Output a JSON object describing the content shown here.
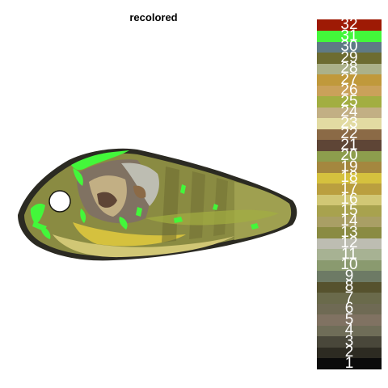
{
  "title": "recolored",
  "palette": [
    {
      "label": "1",
      "color": "#0b0b0b"
    },
    {
      "label": "2",
      "color": "#2d2b22"
    },
    {
      "label": "3",
      "color": "#49473a"
    },
    {
      "label": "4",
      "color": "#6f6d58"
    },
    {
      "label": "5",
      "color": "#807262"
    },
    {
      "label": "6",
      "color": "#6f6a54"
    },
    {
      "label": "7",
      "color": "#6a6a4b"
    },
    {
      "label": "8",
      "color": "#56522e"
    },
    {
      "label": "9",
      "color": "#6d7a65"
    },
    {
      "label": "10",
      "color": "#8a9a6f"
    },
    {
      "label": "11",
      "color": "#a7b293"
    },
    {
      "label": "12",
      "color": "#bdbdb2"
    },
    {
      "label": "13",
      "color": "#8a8b42"
    },
    {
      "label": "14",
      "color": "#a99f65"
    },
    {
      "label": "15",
      "color": "#a8a24e"
    },
    {
      "label": "16",
      "color": "#d1c775"
    },
    {
      "label": "17",
      "color": "#ba9f3f"
    },
    {
      "label": "18",
      "color": "#d5c13e"
    },
    {
      "label": "19",
      "color": "#a4873f"
    },
    {
      "label": "20",
      "color": "#8d9d4d"
    },
    {
      "label": "21",
      "color": "#5e4536"
    },
    {
      "label": "22",
      "color": "#8b6a46"
    },
    {
      "label": "23",
      "color": "#e2dba2"
    },
    {
      "label": "24",
      "color": "#c2af84"
    },
    {
      "label": "25",
      "color": "#a2ae42"
    },
    {
      "label": "26",
      "color": "#caa15a"
    },
    {
      "label": "27",
      "color": "#c0993b"
    },
    {
      "label": "28",
      "color": "#abb189"
    },
    {
      "label": "29",
      "color": "#6d6c31"
    },
    {
      "label": "30",
      "color": "#5f7a85"
    },
    {
      "label": "31",
      "color": "#43f73a"
    },
    {
      "label": "32",
      "color": "#9e1a05"
    }
  ]
}
